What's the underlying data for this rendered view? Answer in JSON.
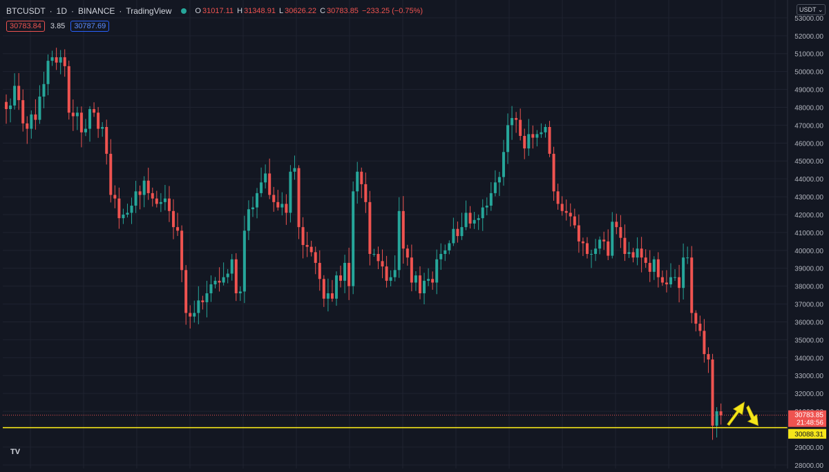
{
  "header": {
    "symbol": "BTCUSDT",
    "interval": "1D",
    "exchange": "BINANCE",
    "source": "TradingView",
    "open_label": "O",
    "open": "31017.11",
    "high_label": "H",
    "high": "31348.91",
    "low_label": "L",
    "low": "30626.22",
    "close_label": "C",
    "close": "30783.85",
    "change": "−233.25 (−0.75%)"
  },
  "quote": {
    "bid": "30783.84",
    "spread": "3.85",
    "ask": "30787.69"
  },
  "currency_button": "USDT",
  "logo_text": "TV",
  "colors": {
    "background": "#131722",
    "up": "#26a69a",
    "down": "#ef5350",
    "support_line": "#f5e61a",
    "axis_text": "#b2b5be",
    "grid": "#1f2330"
  },
  "chart_data": {
    "type": "candlestick",
    "title": "BTCUSDT · 1D · BINANCE",
    "xlabel": "",
    "ylabel": "",
    "ylim": [
      27800,
      54000
    ],
    "y_ticks": [
      28000,
      29000,
      31000,
      32000,
      33000,
      34000,
      35000,
      36000,
      37000,
      38000,
      39000,
      40000,
      41000,
      42000,
      43000,
      44000,
      45000,
      46000,
      47000,
      48000,
      49000,
      50000,
      51000,
      52000,
      53000
    ],
    "y_tick_labels": [
      "28000.00",
      "29000.00",
      "31000.00",
      "32000.00",
      "33000.00",
      "34000.00",
      "35000.00",
      "36000.00",
      "37000.00",
      "38000.00",
      "39000.00",
      "40000.00",
      "41000.00",
      "42000.00",
      "43000.00",
      "44000.00",
      "45000.00",
      "46000.00",
      "47000.00",
      "48000.00",
      "49000.00",
      "50000.00",
      "51000.00",
      "52000.00",
      "53000.00"
    ],
    "grid": true,
    "closes": [
      47900,
      48100,
      49200,
      48400,
      47100,
      46800,
      47600,
      47300,
      48600,
      49300,
      50600,
      50800,
      50500,
      50800,
      50300,
      47700,
      47500,
      47700,
      46600,
      46800,
      47900,
      47700,
      46800,
      46900,
      45400,
      43100,
      42900,
      41800,
      42000,
      42100,
      42500,
      43300,
      43100,
      43900,
      43200,
      42900,
      42600,
      42700,
      42900,
      42200,
      41300,
      41100,
      38900,
      36500,
      36300,
      36500,
      37200,
      37100,
      37600,
      38100,
      38300,
      38200,
      38500,
      38700,
      39500,
      37600,
      37700,
      41100,
      42300,
      42400,
      43200,
      43800,
      44300,
      43100,
      42700,
      42400,
      42600,
      42100,
      44400,
      44600,
      41300,
      40300,
      40200,
      39900,
      39300,
      38400,
      37300,
      37600,
      37300,
      38600,
      38300,
      39300,
      38000,
      43300,
      44400,
      43700,
      42700,
      39800,
      39800,
      39400,
      39100,
      38300,
      38500,
      38900,
      42200,
      40100,
      39600,
      38200,
      38600,
      37600,
      38300,
      38400,
      38200,
      39500,
      39800,
      40000,
      40400,
      41200,
      40800,
      41300,
      42100,
      41500,
      41700,
      41800,
      42400,
      42500,
      43200,
      43800,
      44100,
      45500,
      47000,
      47400,
      47300,
      46400,
      45700,
      46500,
      46300,
      46500,
      46600,
      46900,
      45400,
      43300,
      42600,
      42200,
      42100,
      41900,
      41400,
      40500,
      40400,
      39800,
      39800,
      40100,
      40600,
      40500,
      39700,
      41600,
      41300,
      40700,
      39800,
      39900,
      39600,
      40100,
      39600,
      39300,
      38800,
      39500,
      38500,
      38200,
      38100,
      38500,
      38500,
      37900,
      39600,
      39600,
      36500,
      35900,
      35500,
      34200,
      33900,
      30200,
      31000,
      30783.85
    ],
    "last_price": 30783.85,
    "last_price_label": "30783.85",
    "countdown": "21:48:56",
    "support_level": 30088.31,
    "support_label": "30088.31",
    "annotations": [
      "yellow up arrow",
      "yellow down arrow"
    ]
  }
}
